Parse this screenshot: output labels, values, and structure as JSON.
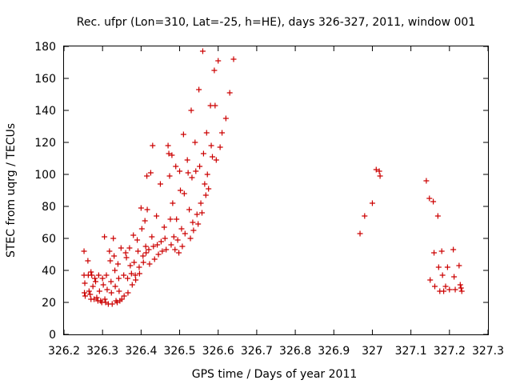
{
  "chart_data": {
    "type": "scatter",
    "title": "Rec. ufpr (Lon=310, Lat=-25, h=HE), days 326-327, 2011, window 001",
    "xlabel": "GPS time / Days of year 2011",
    "ylabel": "STEC from uqrg / TECUs",
    "xlim": [
      326.2,
      327.3
    ],
    "ylim": [
      0,
      180
    ],
    "xticks": [
      "326.2",
      "326.3",
      "326.4",
      "326.5",
      "326.6",
      "326.7",
      "326.8",
      "326.9",
      "327",
      "327.1",
      "327.2",
      "327.3"
    ],
    "yticks": [
      "0",
      "20",
      "40",
      "60",
      "80",
      "100",
      "120",
      "140",
      "160",
      "180"
    ],
    "grid": false,
    "marker": "plus",
    "color": "#cc0000",
    "points": [
      [
        326.252,
        52
      ],
      [
        326.252,
        37
      ],
      [
        326.254,
        32
      ],
      [
        326.253,
        26
      ],
      [
        326.255,
        24
      ],
      [
        326.262,
        46
      ],
      [
        326.263,
        37
      ],
      [
        326.265,
        27
      ],
      [
        326.268,
        25
      ],
      [
        326.27,
        22
      ],
      [
        326.27,
        39
      ],
      [
        326.272,
        37
      ],
      [
        326.275,
        30
      ],
      [
        326.278,
        22
      ],
      [
        326.28,
        35
      ],
      [
        326.282,
        33
      ],
      [
        326.285,
        23
      ],
      [
        326.288,
        21
      ],
      [
        326.29,
        37
      ],
      [
        326.292,
        27
      ],
      [
        326.295,
        21
      ],
      [
        326.298,
        20
      ],
      [
        326.3,
        35
      ],
      [
        326.302,
        31
      ],
      [
        326.305,
        61
      ],
      [
        326.306,
        22
      ],
      [
        326.308,
        20
      ],
      [
        326.31,
        37
      ],
      [
        326.312,
        28
      ],
      [
        326.315,
        19
      ],
      [
        326.318,
        52
      ],
      [
        326.32,
        46
      ],
      [
        326.322,
        33
      ],
      [
        326.323,
        26
      ],
      [
        326.325,
        19
      ],
      [
        326.328,
        60
      ],
      [
        326.33,
        49
      ],
      [
        326.332,
        40
      ],
      [
        326.333,
        30
      ],
      [
        326.335,
        21
      ],
      [
        326.338,
        20
      ],
      [
        326.34,
        44
      ],
      [
        326.342,
        35
      ],
      [
        326.343,
        27
      ],
      [
        326.345,
        21
      ],
      [
        326.348,
        54
      ],
      [
        326.35,
        22
      ],
      [
        326.355,
        37
      ],
      [
        326.356,
        24
      ],
      [
        326.36,
        51
      ],
      [
        326.362,
        48
      ],
      [
        326.365,
        35
      ],
      [
        326.366,
        26
      ],
      [
        326.37,
        54
      ],
      [
        326.372,
        43
      ],
      [
        326.375,
        38
      ],
      [
        326.377,
        31
      ],
      [
        326.38,
        62
      ],
      [
        326.382,
        45
      ],
      [
        326.385,
        37
      ],
      [
        326.386,
        34
      ],
      [
        326.39,
        59
      ],
      [
        326.392,
        52
      ],
      [
        326.395,
        42
      ],
      [
        326.396,
        38
      ],
      [
        326.4,
        79
      ],
      [
        326.402,
        66
      ],
      [
        326.405,
        49
      ],
      [
        326.406,
        45
      ],
      [
        326.41,
        71
      ],
      [
        326.412,
        55
      ],
      [
        326.413,
        51
      ],
      [
        326.415,
        99
      ],
      [
        326.416,
        78
      ],
      [
        326.42,
        53
      ],
      [
        326.422,
        44
      ],
      [
        326.425,
        101
      ],
      [
        326.428,
        61
      ],
      [
        326.43,
        118
      ],
      [
        326.432,
        55
      ],
      [
        326.435,
        47
      ],
      [
        326.44,
        74
      ],
      [
        326.442,
        56
      ],
      [
        326.445,
        50
      ],
      [
        326.45,
        94
      ],
      [
        326.452,
        58
      ],
      [
        326.455,
        52
      ],
      [
        326.46,
        67
      ],
      [
        326.462,
        60
      ],
      [
        326.465,
        53
      ],
      [
        326.47,
        118
      ],
      [
        326.472,
        113
      ],
      [
        326.474,
        99
      ],
      [
        326.476,
        72
      ],
      [
        326.478,
        56
      ],
      [
        326.48,
        112
      ],
      [
        326.482,
        82
      ],
      [
        326.485,
        61
      ],
      [
        326.488,
        53
      ],
      [
        326.49,
        105
      ],
      [
        326.492,
        72
      ],
      [
        326.495,
        59
      ],
      [
        326.498,
        51
      ],
      [
        326.5,
        102
      ],
      [
        326.502,
        90
      ],
      [
        326.505,
        66
      ],
      [
        326.507,
        55
      ],
      [
        326.51,
        125
      ],
      [
        326.512,
        88
      ],
      [
        326.514,
        63
      ],
      [
        326.52,
        109
      ],
      [
        326.522,
        101
      ],
      [
        326.525,
        78
      ],
      [
        326.528,
        60
      ],
      [
        326.53,
        140
      ],
      [
        326.532,
        98
      ],
      [
        326.534,
        70
      ],
      [
        326.536,
        65
      ],
      [
        326.54,
        120
      ],
      [
        326.542,
        102
      ],
      [
        326.545,
        75
      ],
      [
        326.548,
        69
      ],
      [
        326.55,
        153
      ],
      [
        326.552,
        105
      ],
      [
        326.555,
        82
      ],
      [
        326.558,
        76
      ],
      [
        326.56,
        177
      ],
      [
        326.562,
        113
      ],
      [
        326.565,
        94
      ],
      [
        326.568,
        87
      ],
      [
        326.57,
        126
      ],
      [
        326.572,
        100
      ],
      [
        326.575,
        91
      ],
      [
        326.58,
        143
      ],
      [
        326.582,
        118
      ],
      [
        326.585,
        111
      ],
      [
        326.59,
        165
      ],
      [
        326.592,
        143
      ],
      [
        326.595,
        109
      ],
      [
        326.6,
        171
      ],
      [
        326.605,
        117
      ],
      [
        326.61,
        126
      ],
      [
        326.62,
        135
      ],
      [
        326.63,
        151
      ],
      [
        326.64,
        172
      ],
      [
        326.968,
        63
      ],
      [
        326.98,
        74
      ],
      [
        327.0,
        82
      ],
      [
        327.01,
        103
      ],
      [
        327.018,
        102
      ],
      [
        327.02,
        99
      ],
      [
        327.14,
        96
      ],
      [
        327.148,
        85
      ],
      [
        327.15,
        34
      ],
      [
        327.158,
        83
      ],
      [
        327.16,
        51
      ],
      [
        327.162,
        30
      ],
      [
        327.17,
        74
      ],
      [
        327.172,
        42
      ],
      [
        327.175,
        27
      ],
      [
        327.18,
        52
      ],
      [
        327.182,
        37
      ],
      [
        327.185,
        27
      ],
      [
        327.19,
        30
      ],
      [
        327.195,
        42
      ],
      [
        327.2,
        28
      ],
      [
        327.21,
        53
      ],
      [
        327.212,
        36
      ],
      [
        327.215,
        28
      ],
      [
        327.225,
        43
      ],
      [
        327.228,
        31
      ],
      [
        327.23,
        29
      ],
      [
        327.232,
        27
      ]
    ]
  }
}
